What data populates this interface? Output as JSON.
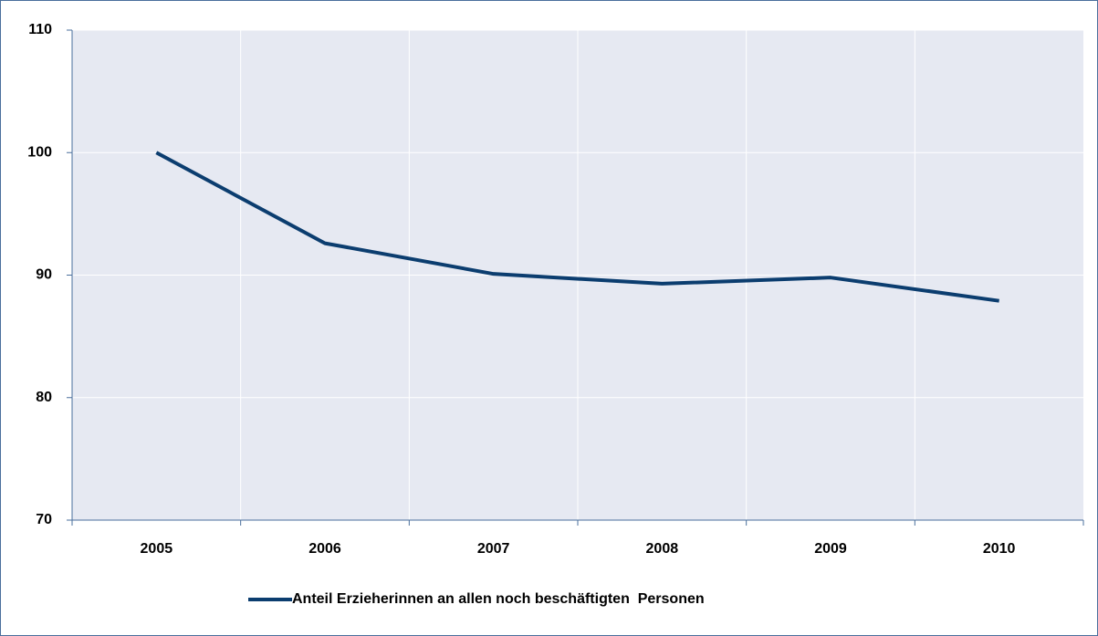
{
  "chart_data": {
    "type": "line",
    "categories": [
      "2005",
      "2006",
      "2007",
      "2008",
      "2009",
      "2010"
    ],
    "series": [
      {
        "name": "Anteil Erzieherinnen an allen noch beschäftigten  Personen",
        "color": "#0b3d6f",
        "values": [
          100,
          92.6,
          90.1,
          89.3,
          89.8,
          87.9
        ]
      }
    ],
    "ylim": [
      70,
      110
    ],
    "yticks": [
      70,
      80,
      90,
      100,
      110
    ],
    "grid": true,
    "legend": "bottom"
  }
}
